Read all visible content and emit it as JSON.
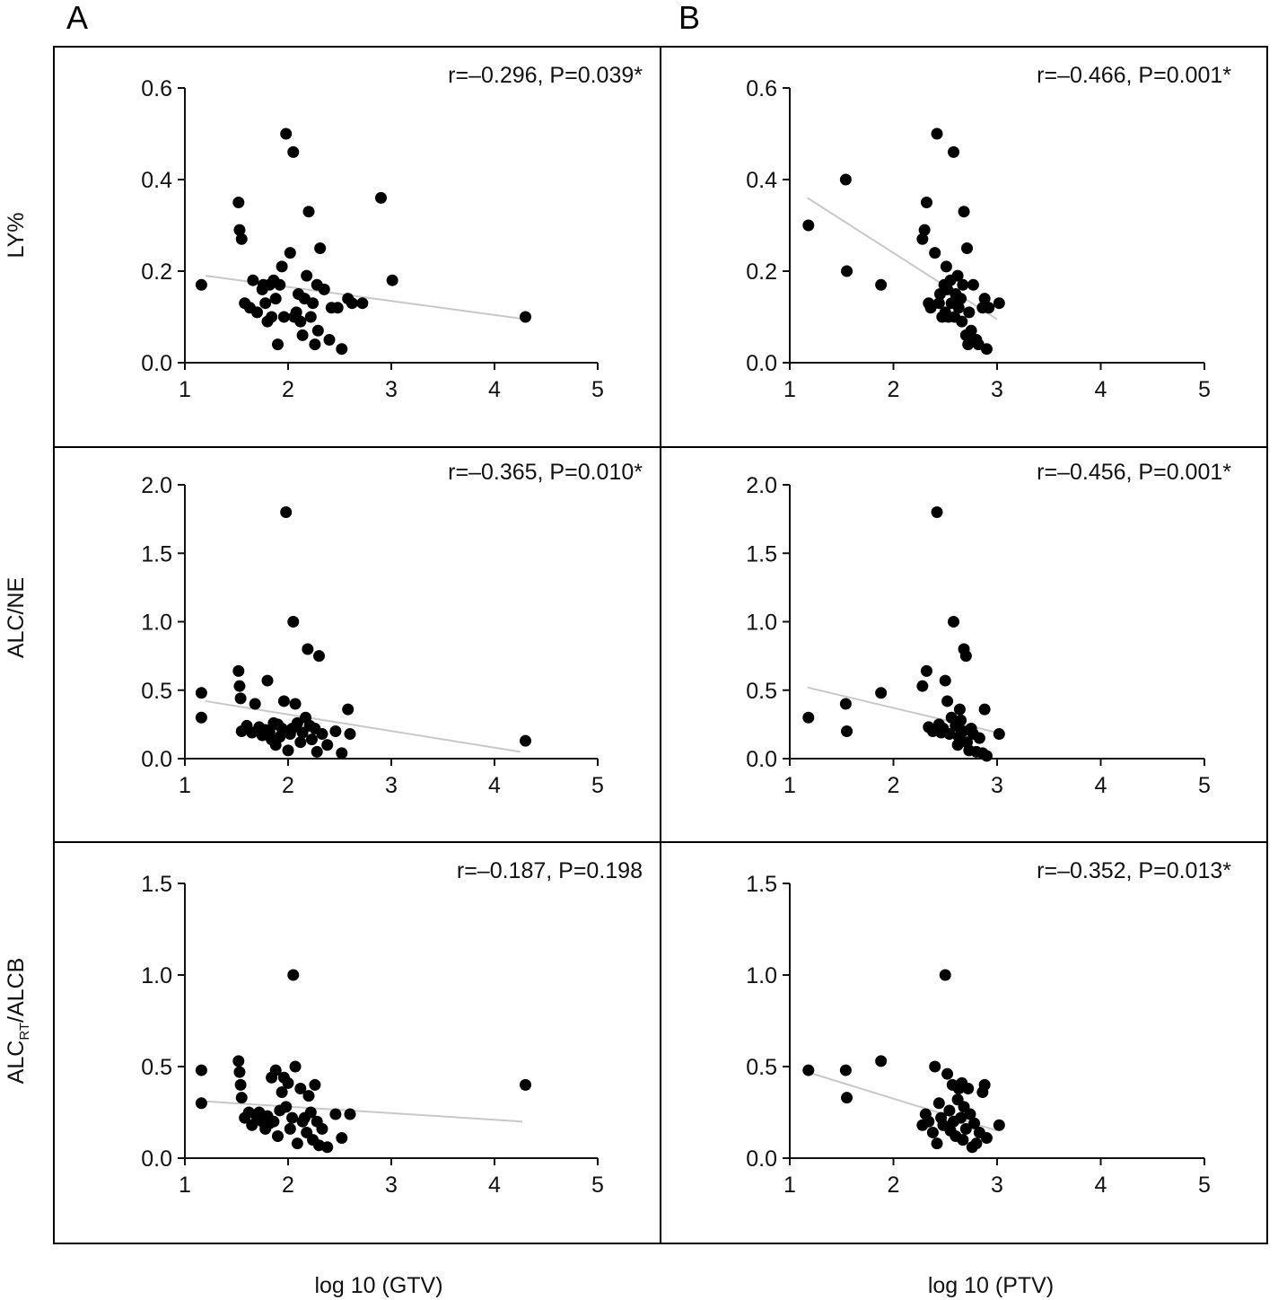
{
  "panel_letters": [
    "A",
    "B"
  ],
  "row_labels": [
    "LY%",
    "ALC/NE",
    "ALC_RT/ALCB"
  ],
  "row_label_parts": {
    "main": "ALC",
    "sub": "RT",
    "rest": "/ALCB"
  },
  "column_xlabels": [
    "log 10 (GTV)",
    "log 10 (PTV)"
  ],
  "chart_data": [
    {
      "type": "scatter",
      "panel": "A",
      "row": 1,
      "ylabel": "LY%",
      "xlabel": "log 10 (GTV)",
      "annotation": "r=–0.296, P=0.039*",
      "xlim": [
        1,
        5
      ],
      "ylim": [
        0,
        0.6
      ],
      "xticks": [
        "1",
        "2",
        "3",
        "4",
        "5"
      ],
      "yticks": [
        "0.0",
        "0.2",
        "0.4",
        "0.6"
      ],
      "fit_line": [
        [
          1.2,
          0.19
        ],
        [
          4.3,
          0.095
        ]
      ],
      "points": [
        [
          1.16,
          0.17
        ],
        [
          1.52,
          0.35
        ],
        [
          1.53,
          0.29
        ],
        [
          1.55,
          0.27
        ],
        [
          1.58,
          0.13
        ],
        [
          1.63,
          0.12
        ],
        [
          1.66,
          0.18
        ],
        [
          1.7,
          0.11
        ],
        [
          1.75,
          0.16
        ],
        [
          1.76,
          0.17
        ],
        [
          1.78,
          0.13
        ],
        [
          1.8,
          0.09
        ],
        [
          1.82,
          0.17
        ],
        [
          1.84,
          0.1
        ],
        [
          1.86,
          0.18
        ],
        [
          1.88,
          0.14
        ],
        [
          1.9,
          0.04
        ],
        [
          1.92,
          0.17
        ],
        [
          1.94,
          0.21
        ],
        [
          1.96,
          0.1
        ],
        [
          1.98,
          0.5
        ],
        [
          2.02,
          0.24
        ],
        [
          2.05,
          0.46
        ],
        [
          2.06,
          0.1
        ],
        [
          2.08,
          0.11
        ],
        [
          2.1,
          0.15
        ],
        [
          2.12,
          0.09
        ],
        [
          2.14,
          0.06
        ],
        [
          2.16,
          0.14
        ],
        [
          2.18,
          0.19
        ],
        [
          2.2,
          0.33
        ],
        [
          2.22,
          0.1
        ],
        [
          2.24,
          0.13
        ],
        [
          2.26,
          0.04
        ],
        [
          2.28,
          0.17
        ],
        [
          2.29,
          0.07
        ],
        [
          2.31,
          0.25
        ],
        [
          2.35,
          0.16
        ],
        [
          2.4,
          0.05
        ],
        [
          2.42,
          0.12
        ],
        [
          2.48,
          0.12
        ],
        [
          2.52,
          0.03
        ],
        [
          2.58,
          0.14
        ],
        [
          2.62,
          0.13
        ],
        [
          2.72,
          0.13
        ],
        [
          2.9,
          0.36
        ],
        [
          3.01,
          0.18
        ],
        [
          4.3,
          0.1
        ]
      ]
    },
    {
      "type": "scatter",
      "panel": "B",
      "row": 1,
      "ylabel": "LY%",
      "xlabel": "log 10 (PTV)",
      "annotation": "r=–0.466, P=0.001*",
      "xlim": [
        1,
        5
      ],
      "ylim": [
        0,
        0.6
      ],
      "xticks": [
        "1",
        "2",
        "3",
        "4",
        "5"
      ],
      "yticks": [
        "0.0",
        "0.2",
        "0.4",
        "0.6"
      ],
      "fit_line": [
        [
          1.17,
          0.36
        ],
        [
          3.0,
          0.095
        ]
      ],
      "points": [
        [
          1.18,
          0.3
        ],
        [
          1.54,
          0.4
        ],
        [
          1.55,
          0.2
        ],
        [
          1.88,
          0.17
        ],
        [
          2.28,
          0.27
        ],
        [
          2.3,
          0.29
        ],
        [
          2.32,
          0.35
        ],
        [
          2.34,
          0.13
        ],
        [
          2.36,
          0.12
        ],
        [
          2.4,
          0.24
        ],
        [
          2.42,
          0.5
        ],
        [
          2.44,
          0.13
        ],
        [
          2.45,
          0.15
        ],
        [
          2.47,
          0.1
        ],
        [
          2.49,
          0.17
        ],
        [
          2.5,
          0.11
        ],
        [
          2.51,
          0.21
        ],
        [
          2.52,
          0.16
        ],
        [
          2.53,
          0.1
        ],
        [
          2.55,
          0.18
        ],
        [
          2.56,
          0.13
        ],
        [
          2.58,
          0.46
        ],
        [
          2.59,
          0.1
        ],
        [
          2.6,
          0.15
        ],
        [
          2.62,
          0.19
        ],
        [
          2.63,
          0.12
        ],
        [
          2.65,
          0.14
        ],
        [
          2.66,
          0.09
        ],
        [
          2.67,
          0.17
        ],
        [
          2.68,
          0.33
        ],
        [
          2.7,
          0.06
        ],
        [
          2.71,
          0.25
        ],
        [
          2.72,
          0.04
        ],
        [
          2.73,
          0.11
        ],
        [
          2.75,
          0.07
        ],
        [
          2.77,
          0.17
        ],
        [
          2.8,
          0.05
        ],
        [
          2.82,
          0.04
        ],
        [
          2.86,
          0.12
        ],
        [
          2.88,
          0.14
        ],
        [
          2.9,
          0.03
        ],
        [
          2.92,
          0.12
        ],
        [
          3.02,
          0.13
        ]
      ]
    },
    {
      "type": "scatter",
      "panel": "A",
      "row": 2,
      "ylabel": "ALC/NE",
      "xlabel": "log 10 (GTV)",
      "annotation": "r=–0.365, P=0.010*",
      "xlim": [
        1,
        5
      ],
      "ylim": [
        0,
        2.0
      ],
      "xticks": [
        "1",
        "2",
        "3",
        "4",
        "5"
      ],
      "yticks": [
        "0.0",
        "0.5",
        "1.0",
        "1.5",
        "2.0"
      ],
      "fit_line": [
        [
          1.2,
          0.42
        ],
        [
          4.25,
          0.05
        ]
      ],
      "points": [
        [
          1.16,
          0.48
        ],
        [
          1.16,
          0.3
        ],
        [
          1.52,
          0.64
        ],
        [
          1.53,
          0.53
        ],
        [
          1.54,
          0.44
        ],
        [
          1.55,
          0.2
        ],
        [
          1.6,
          0.24
        ],
        [
          1.65,
          0.19
        ],
        [
          1.68,
          0.4
        ],
        [
          1.72,
          0.23
        ],
        [
          1.75,
          0.17
        ],
        [
          1.78,
          0.21
        ],
        [
          1.8,
          0.57
        ],
        [
          1.82,
          0.2
        ],
        [
          1.84,
          0.14
        ],
        [
          1.86,
          0.26
        ],
        [
          1.88,
          0.1
        ],
        [
          1.9,
          0.25
        ],
        [
          1.92,
          0.16
        ],
        [
          1.94,
          0.22
        ],
        [
          1.96,
          0.42
        ],
        [
          1.98,
          1.8
        ],
        [
          2.0,
          0.06
        ],
        [
          2.02,
          0.18
        ],
        [
          2.04,
          0.22
        ],
        [
          2.05,
          1.0
        ],
        [
          2.07,
          0.4
        ],
        [
          2.09,
          0.26
        ],
        [
          2.12,
          0.12
        ],
        [
          2.14,
          0.19
        ],
        [
          2.17,
          0.3
        ],
        [
          2.19,
          0.8
        ],
        [
          2.21,
          0.24
        ],
        [
          2.23,
          0.14
        ],
        [
          2.26,
          0.22
        ],
        [
          2.28,
          0.05
        ],
        [
          2.3,
          0.75
        ],
        [
          2.33,
          0.18
        ],
        [
          2.38,
          0.1
        ],
        [
          2.46,
          0.2
        ],
        [
          2.52,
          0.04
        ],
        [
          2.58,
          0.36
        ],
        [
          2.6,
          0.18
        ],
        [
          4.3,
          0.13
        ]
      ]
    },
    {
      "type": "scatter",
      "panel": "B",
      "row": 2,
      "ylabel": "ALC/NE",
      "xlabel": "log 10 (PTV)",
      "annotation": "r=–0.456, P=0.001*",
      "xlim": [
        1,
        5
      ],
      "ylim": [
        0,
        2.0
      ],
      "xticks": [
        "1",
        "2",
        "3",
        "4",
        "5"
      ],
      "yticks": [
        "0.0",
        "0.5",
        "1.0",
        "1.5",
        "2.0"
      ],
      "fit_line": [
        [
          1.17,
          0.52
        ],
        [
          3.0,
          0.19
        ]
      ],
      "points": [
        [
          1.18,
          0.3
        ],
        [
          1.54,
          0.4
        ],
        [
          1.55,
          0.2
        ],
        [
          1.88,
          0.48
        ],
        [
          2.28,
          0.53
        ],
        [
          2.32,
          0.64
        ],
        [
          2.34,
          0.23
        ],
        [
          2.38,
          0.2
        ],
        [
          2.42,
          1.8
        ],
        [
          2.44,
          0.25
        ],
        [
          2.46,
          0.19
        ],
        [
          2.48,
          0.22
        ],
        [
          2.5,
          0.57
        ],
        [
          2.52,
          0.42
        ],
        [
          2.54,
          0.18
        ],
        [
          2.56,
          0.3
        ],
        [
          2.58,
          1.0
        ],
        [
          2.6,
          0.24
        ],
        [
          2.62,
          0.1
        ],
        [
          2.63,
          0.16
        ],
        [
          2.64,
          0.36
        ],
        [
          2.65,
          0.28
        ],
        [
          2.67,
          0.2
        ],
        [
          2.68,
          0.8
        ],
        [
          2.7,
          0.75
        ],
        [
          2.71,
          0.12
        ],
        [
          2.73,
          0.06
        ],
        [
          2.75,
          0.22
        ],
        [
          2.77,
          0.18
        ],
        [
          2.8,
          0.05
        ],
        [
          2.83,
          0.15
        ],
        [
          2.86,
          0.04
        ],
        [
          2.88,
          0.36
        ],
        [
          2.9,
          0.02
        ],
        [
          3.02,
          0.18
        ]
      ]
    },
    {
      "type": "scatter",
      "panel": "A",
      "row": 3,
      "ylabel": "ALC_RT/ALCB",
      "xlabel": "log 10 (GTV)",
      "annotation": "r=–0.187, P=0.198",
      "xlim": [
        1,
        5
      ],
      "ylim": [
        0,
        1.5
      ],
      "xticks": [
        "1",
        "2",
        "3",
        "4",
        "5"
      ],
      "yticks": [
        "0.0",
        "0.5",
        "1.0",
        "1.5"
      ],
      "fit_line": [
        [
          1.2,
          0.31
        ],
        [
          4.27,
          0.2
        ]
      ],
      "points": [
        [
          1.16,
          0.48
        ],
        [
          1.16,
          0.3
        ],
        [
          1.52,
          0.53
        ],
        [
          1.53,
          0.47
        ],
        [
          1.54,
          0.4
        ],
        [
          1.55,
          0.33
        ],
        [
          1.58,
          0.22
        ],
        [
          1.62,
          0.25
        ],
        [
          1.65,
          0.18
        ],
        [
          1.7,
          0.22
        ],
        [
          1.72,
          0.25
        ],
        [
          1.75,
          0.2
        ],
        [
          1.78,
          0.16
        ],
        [
          1.8,
          0.23
        ],
        [
          1.82,
          0.19
        ],
        [
          1.84,
          0.44
        ],
        [
          1.86,
          0.2
        ],
        [
          1.88,
          0.48
        ],
        [
          1.9,
          0.12
        ],
        [
          1.92,
          0.26
        ],
        [
          1.94,
          0.36
        ],
        [
          1.96,
          0.44
        ],
        [
          1.98,
          0.28
        ],
        [
          2.0,
          0.41
        ],
        [
          2.02,
          0.16
        ],
        [
          2.04,
          0.22
        ],
        [
          2.05,
          1.0
        ],
        [
          2.07,
          0.5
        ],
        [
          2.09,
          0.08
        ],
        [
          2.12,
          0.38
        ],
        [
          2.14,
          0.2
        ],
        [
          2.16,
          0.22
        ],
        [
          2.18,
          0.14
        ],
        [
          2.2,
          0.34
        ],
        [
          2.22,
          0.25
        ],
        [
          2.24,
          0.1
        ],
        [
          2.26,
          0.4
        ],
        [
          2.28,
          0.2
        ],
        [
          2.3,
          0.07
        ],
        [
          2.33,
          0.16
        ],
        [
          2.38,
          0.06
        ],
        [
          2.46,
          0.24
        ],
        [
          2.52,
          0.11
        ],
        [
          2.6,
          0.24
        ],
        [
          4.3,
          0.4
        ]
      ]
    },
    {
      "type": "scatter",
      "panel": "B",
      "row": 3,
      "ylabel": "ALC_RT/ALCB",
      "xlabel": "log 10 (PTV)",
      "annotation": "r=–0.352, P=0.013*",
      "xlim": [
        1,
        5
      ],
      "ylim": [
        0,
        1.5
      ],
      "xticks": [
        "1",
        "2",
        "3",
        "4",
        "5"
      ],
      "yticks": [
        "0.0",
        "0.5",
        "1.0",
        "1.5"
      ],
      "fit_line": [
        [
          1.17,
          0.47
        ],
        [
          3.0,
          0.15
        ]
      ],
      "points": [
        [
          1.18,
          0.48
        ],
        [
          1.54,
          0.48
        ],
        [
          1.55,
          0.33
        ],
        [
          1.88,
          0.53
        ],
        [
          2.28,
          0.18
        ],
        [
          2.31,
          0.24
        ],
        [
          2.34,
          0.2
        ],
        [
          2.38,
          0.14
        ],
        [
          2.4,
          0.5
        ],
        [
          2.42,
          0.08
        ],
        [
          2.44,
          0.3
        ],
        [
          2.46,
          0.22
        ],
        [
          2.48,
          0.18
        ],
        [
          2.5,
          1.0
        ],
        [
          2.52,
          0.46
        ],
        [
          2.54,
          0.26
        ],
        [
          2.55,
          0.15
        ],
        [
          2.57,
          0.4
        ],
        [
          2.58,
          0.2
        ],
        [
          2.6,
          0.12
        ],
        [
          2.62,
          0.32
        ],
        [
          2.63,
          0.38
        ],
        [
          2.65,
          0.22
        ],
        [
          2.66,
          0.41
        ],
        [
          2.67,
          0.1
        ],
        [
          2.68,
          0.28
        ],
        [
          2.7,
          0.16
        ],
        [
          2.72,
          0.38
        ],
        [
          2.74,
          0.24
        ],
        [
          2.76,
          0.06
        ],
        [
          2.78,
          0.19
        ],
        [
          2.8,
          0.08
        ],
        [
          2.83,
          0.14
        ],
        [
          2.86,
          0.36
        ],
        [
          2.88,
          0.4
        ],
        [
          2.9,
          0.11
        ],
        [
          3.02,
          0.18
        ]
      ]
    }
  ]
}
